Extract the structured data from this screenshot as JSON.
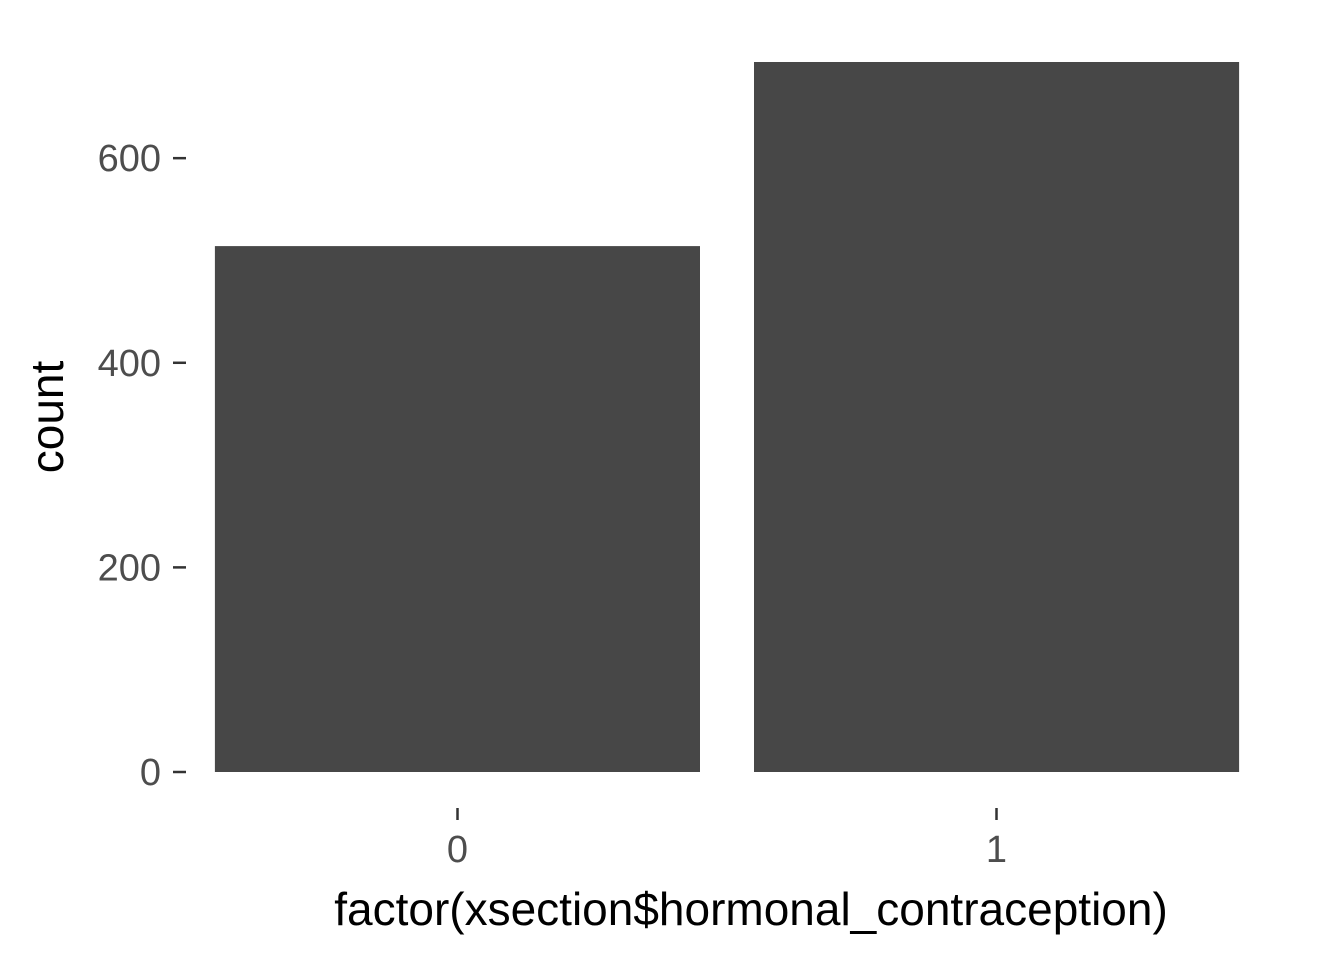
{
  "chart_data": {
    "type": "bar",
    "categories": [
      "0",
      "1"
    ],
    "values": [
      514,
      694
    ],
    "xlabel": "factor(xsection$hormonal_contraception)",
    "ylabel": "count",
    "ylim": [
      0,
      694
    ],
    "yticks": [
      0,
      200,
      400,
      600
    ],
    "grid": false,
    "legend": "none",
    "colors": {
      "bar": "#474747",
      "tick_label": "#4d4d4d",
      "axis_title": "#000000",
      "tick_mark": "#333333"
    }
  }
}
